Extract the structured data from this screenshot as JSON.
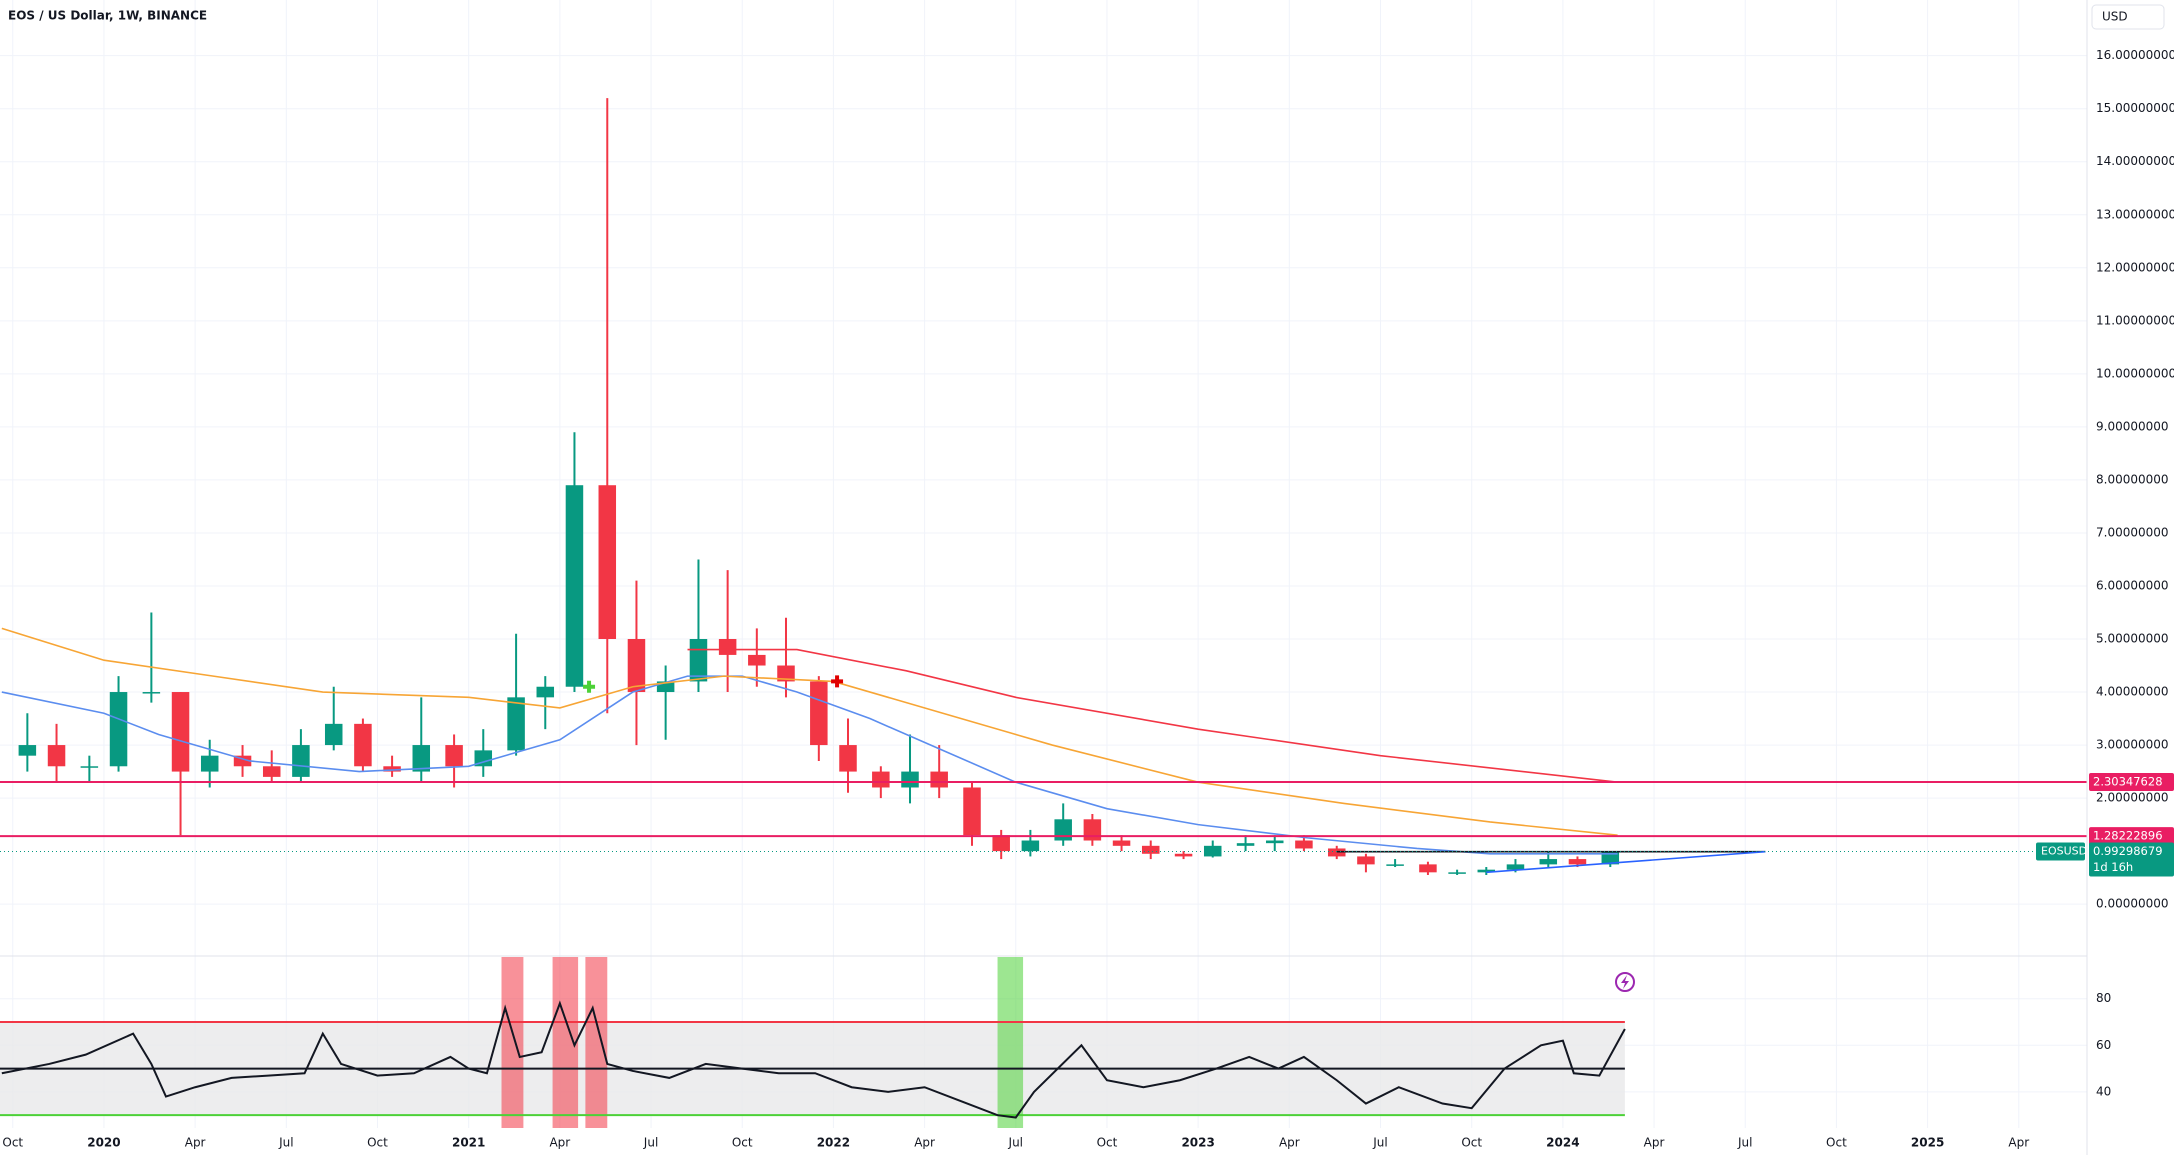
{
  "chart_data": [
    {
      "type": "candlestick",
      "title": "EOS / US Dollar, 1W, BINANCE",
      "currency": "USD",
      "x": [
        2019.79,
        2019.87,
        2019.96,
        2020.04,
        2020.13,
        2020.21,
        2020.29,
        2020.38,
        2020.46,
        2020.54,
        2020.63,
        2020.71,
        2020.79,
        2020.87,
        2020.96,
        2021.04,
        2021.13,
        2021.21,
        2021.29,
        2021.38,
        2021.46,
        2021.54,
        2021.63,
        2021.71,
        2021.79,
        2021.87,
        2021.96,
        2022.04,
        2022.13,
        2022.21,
        2022.29,
        2022.38,
        2022.46,
        2022.54,
        2022.63,
        2022.71,
        2022.79,
        2022.87,
        2022.96,
        2023.04,
        2023.13,
        2023.21,
        2023.29,
        2023.38,
        2023.46,
        2023.54,
        2023.63,
        2023.71,
        2023.79,
        2023.87,
        2023.96,
        2024.04,
        2024.13
      ],
      "open": [
        2.8,
        3.0,
        2.6,
        2.6,
        4.0,
        4.0,
        2.5,
        2.8,
        2.6,
        2.4,
        3.0,
        3.4,
        2.6,
        2.5,
        3.0,
        2.6,
        2.9,
        3.9,
        4.1,
        7.9,
        5.0,
        4.0,
        4.2,
        5.0,
        4.7,
        4.5,
        4.2,
        3.0,
        2.5,
        2.2,
        2.5,
        2.2,
        1.3,
        1.0,
        1.2,
        1.6,
        1.2,
        1.1,
        0.95,
        0.9,
        1.1,
        1.15,
        1.2,
        1.05,
        0.9,
        0.75,
        0.75,
        0.6,
        0.6,
        0.65,
        0.75,
        0.85,
        0.75
      ],
      "high": [
        3.6,
        3.4,
        2.8,
        4.3,
        5.5,
        4.0,
        3.1,
        3.0,
        2.9,
        3.3,
        4.1,
        3.5,
        2.8,
        3.9,
        3.2,
        3.3,
        5.1,
        4.3,
        8.9,
        15.2,
        6.1,
        4.5,
        6.5,
        6.3,
        5.2,
        5.4,
        4.3,
        3.5,
        2.6,
        3.2,
        3.0,
        2.3,
        1.4,
        1.4,
        1.9,
        1.7,
        1.3,
        1.2,
        1.0,
        1.2,
        1.3,
        1.3,
        1.3,
        1.1,
        0.95,
        0.85,
        0.8,
        0.65,
        0.7,
        0.85,
        1.0,
        0.9,
        1.0
      ],
      "low": [
        2.5,
        2.3,
        2.3,
        2.5,
        3.8,
        1.3,
        2.2,
        2.4,
        2.3,
        2.3,
        2.9,
        2.5,
        2.4,
        2.3,
        2.2,
        2.4,
        2.8,
        3.3,
        4.0,
        3.6,
        3.0,
        3.1,
        4.0,
        4.0,
        4.1,
        3.9,
        2.7,
        2.1,
        2.0,
        1.9,
        2.0,
        1.1,
        0.85,
        0.9,
        1.1,
        1.1,
        1.0,
        0.85,
        0.85,
        0.88,
        1.0,
        1.0,
        1.0,
        0.85,
        0.6,
        0.7,
        0.55,
        0.55,
        0.55,
        0.6,
        0.7,
        0.7,
        0.7
      ],
      "close": [
        3.0,
        2.6,
        2.6,
        4.0,
        4.0,
        2.5,
        2.8,
        2.6,
        2.4,
        3.0,
        3.4,
        2.6,
        2.5,
        3.0,
        2.6,
        2.9,
        3.9,
        4.1,
        7.9,
        5.0,
        4.0,
        4.2,
        5.0,
        4.7,
        4.5,
        4.2,
        3.0,
        2.5,
        2.2,
        2.5,
        2.2,
        1.3,
        1.0,
        1.2,
        1.6,
        1.2,
        1.1,
        0.95,
        0.9,
        1.1,
        1.15,
        1.2,
        1.05,
        0.9,
        0.75,
        0.75,
        0.6,
        0.6,
        0.65,
        0.75,
        0.85,
        0.75,
        0.99
      ],
      "up_color": "#089981",
      "down_color": "#f23645",
      "lines": [
        {
          "color": "#5b8def",
          "x": [
            2019.72,
            2020.0,
            2020.15,
            2020.4,
            2020.7,
            2021.0,
            2021.25,
            2021.45,
            2021.6,
            2021.75,
            2021.9,
            2022.1,
            2022.3,
            2022.5,
            2022.75,
            2023.0,
            2023.3,
            2023.6,
            2023.8,
            2024.0,
            2024.15
          ],
          "values": [
            4.0,
            3.6,
            3.2,
            2.7,
            2.5,
            2.6,
            3.1,
            4.0,
            4.3,
            4.3,
            4.0,
            3.5,
            2.9,
            2.3,
            1.8,
            1.5,
            1.25,
            1.05,
            0.95,
            0.95,
            0.95
          ]
        },
        {
          "color": "#f7a535",
          "x": [
            2019.72,
            2020.0,
            2020.3,
            2020.6,
            2021.0,
            2021.25,
            2021.45,
            2021.7,
            2022.0,
            2022.3,
            2022.6,
            2023.0,
            2023.4,
            2023.8,
            2024.15
          ],
          "values": [
            5.2,
            4.6,
            4.3,
            4.0,
            3.9,
            3.7,
            4.1,
            4.3,
            4.2,
            3.6,
            3.0,
            2.3,
            1.9,
            1.55,
            1.3
          ]
        },
        {
          "color": "#f23645",
          "x": [
            2021.6,
            2021.9,
            2022.2,
            2022.5,
            2023.0,
            2023.5,
            2024.15
          ],
          "values": [
            4.8,
            4.8,
            4.4,
            3.9,
            3.3,
            2.8,
            2.3
          ]
        },
        {
          "color": "#131722",
          "x": [
            2023.38,
            2024.555
          ],
          "values": [
            0.99,
            0.99
          ]
        },
        {
          "color": "#2962ff",
          "x": [
            2023.79,
            2024.555
          ],
          "values": [
            0.6,
            0.99
          ]
        }
      ],
      "markers": [
        {
          "x": 2021.33,
          "value": 4.1,
          "color": "#4cd137"
        },
        {
          "x": 2022.01,
          "value": 4.2,
          "color": "#e00000"
        }
      ],
      "levels": [
        {
          "value": 2.30347628,
          "color": "#e91e63"
        },
        {
          "value": 1.28222896,
          "color": "#e91e63"
        }
      ],
      "last_price": {
        "value": 0.99298679,
        "symbol": "EOSUSD",
        "countdown": "1d 16h",
        "color": "#089981"
      },
      "xlim": [
        2019.715,
        2025.437
      ],
      "ylim": [
        -0.94,
        17.05
      ],
      "grid": true,
      "xticks": [
        {
          "value": 2019.75,
          "label": "Oct"
        },
        2020,
        {
          "value": 2020.25,
          "label": "Apr"
        },
        {
          "value": 2020.5,
          "label": "Jul"
        },
        {
          "value": 2020.75,
          "label": "Oct"
        },
        2021,
        {
          "value": 2021.25,
          "label": "Apr"
        },
        {
          "value": 2021.5,
          "label": "Jul"
        },
        {
          "value": 2021.75,
          "label": "Oct"
        },
        2022,
        {
          "value": 2022.25,
          "label": "Apr"
        },
        {
          "value": 2022.5,
          "label": "Jul"
        },
        {
          "value": 2022.75,
          "label": "Oct"
        },
        2023,
        {
          "value": 2023.25,
          "label": "Apr"
        },
        {
          "value": 2023.5,
          "label": "Jul"
        },
        {
          "value": 2023.75,
          "label": "Oct"
        },
        2024,
        {
          "value": 2024.25,
          "label": "Apr"
        },
        {
          "value": 2024.5,
          "label": "Jul"
        },
        {
          "value": 2024.75,
          "label": "Oct"
        },
        2025,
        {
          "value": 2025.25,
          "label": "Apr"
        }
      ],
      "yticks": [
        {
          "value": 0,
          "label": "0.00000000"
        },
        {
          "value": 2,
          "label": "2.00000000"
        },
        {
          "value": 3,
          "label": "3.00000000"
        },
        {
          "value": 4,
          "label": "4.00000000"
        },
        {
          "value": 5,
          "label": "5.00000000"
        },
        {
          "value": 6,
          "label": "6.00000000"
        },
        {
          "value": 7,
          "label": "7.00000000"
        },
        {
          "value": 8,
          "label": "8.00000000"
        },
        {
          "value": 9,
          "label": "9.00000000"
        },
        {
          "value": 10,
          "label": "10.00000000"
        },
        {
          "value": 11,
          "label": "11.00000000"
        },
        {
          "value": 12,
          "label": "12.00000000"
        },
        {
          "value": 13,
          "label": "13.00000000"
        },
        {
          "value": 14,
          "label": "14.00000000"
        },
        {
          "value": 15,
          "label": "15.00000000"
        },
        {
          "value": 16,
          "label": "16.00000000"
        }
      ]
    },
    {
      "type": "line",
      "color": "#131722",
      "x": [
        2019.72,
        2019.85,
        2019.95,
        2020.08,
        2020.13,
        2020.17,
        2020.25,
        2020.35,
        2020.45,
        2020.55,
        2020.6,
        2020.65,
        2020.75,
        2020.85,
        2020.95,
        2021.0,
        2021.05,
        2021.1,
        2021.14,
        2021.2,
        2021.25,
        2021.29,
        2021.34,
        2021.38,
        2021.45,
        2021.55,
        2021.65,
        2021.75,
        2021.85,
        2021.95,
        2022.05,
        2022.15,
        2022.25,
        2022.35,
        2022.45,
        2022.5,
        2022.55,
        2022.68,
        2022.75,
        2022.85,
        2022.95,
        2023.05,
        2023.14,
        2023.22,
        2023.29,
        2023.38,
        2023.46,
        2023.55,
        2023.67,
        2023.75,
        2023.84,
        2023.94,
        2024.0,
        2024.03,
        2024.1,
        2024.17
      ],
      "values": [
        48,
        52,
        56,
        65,
        52,
        38,
        42,
        46,
        47,
        48,
        65,
        52,
        47,
        48,
        55,
        50,
        48,
        76,
        55,
        57,
        78,
        60,
        76,
        52,
        49,
        46,
        52,
        50,
        48,
        48,
        42,
        40,
        42,
        36,
        30,
        29,
        40,
        60,
        45,
        42,
        45,
        50,
        55,
        50,
        55,
        45,
        35,
        42,
        35,
        33,
        50,
        60,
        62,
        48,
        47,
        67
      ],
      "bands": [
        {
          "value": 70,
          "color": "#f23645"
        },
        {
          "value": 50,
          "color": "#131722"
        },
        {
          "value": 30,
          "color": "#4cd137"
        }
      ],
      "zones": [
        {
          "x": [
            2021.09,
            2021.15
          ],
          "color": "#f23645"
        },
        {
          "x": [
            2021.23,
            2021.3
          ],
          "color": "#f23645"
        },
        {
          "x": [
            2021.32,
            2021.38
          ],
          "color": "#f23645"
        },
        {
          "x": [
            2022.45,
            2022.52
          ],
          "color": "#4cd137"
        }
      ],
      "ylim": [
        24.5,
        97.9
      ],
      "yticks": [
        80,
        60,
        40
      ]
    }
  ]
}
